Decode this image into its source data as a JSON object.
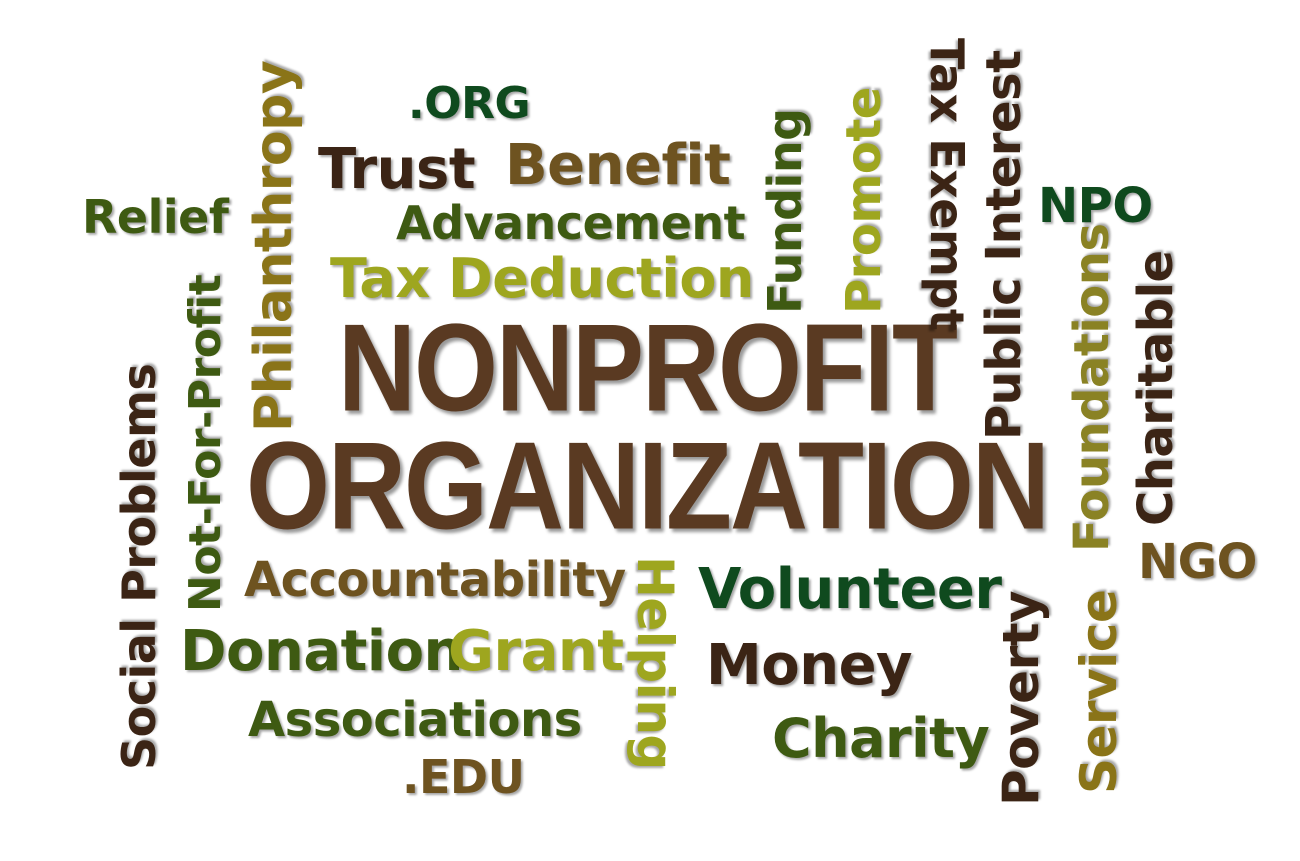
{
  "title_lines": [
    "NONPROFIT",
    "ORGANIZATION"
  ],
  "colors": {
    "brown": "#5a3a22",
    "dark_brown": "#3b2415",
    "olive": "#8a7418",
    "olive_light": "#9ea61f",
    "green": "#3e5a12",
    "dark_green": "#0f4a1e",
    "khaki": "#8a8224"
  },
  "words": {
    "org": ".ORG",
    "trust": "Trust",
    "benefit": "Benefit",
    "relief": "Relief",
    "advancement": "Advancement",
    "tax_deduction": "Tax Deduction",
    "philanthropy": "Philanthropy",
    "not_for_profit": "Not-For-Profit",
    "social_problems": "Social Problems",
    "funding": "Funding",
    "promote": "Promote",
    "tax_exempt": "Tax Exempt",
    "public_interest": "Public Interest",
    "npo": "NPO",
    "foundations": "Foundations",
    "charitable": "Charitable",
    "ngo": "NGO",
    "accountability": "Accountability",
    "helping": "Helping",
    "volunteer": "Volunteer",
    "donation": "Donation",
    "grant": "Grant",
    "money": "Money",
    "associations": "Associations",
    "charity": "Charity",
    "edu": ".EDU",
    "poverty": "Poverty",
    "service": "Service"
  }
}
